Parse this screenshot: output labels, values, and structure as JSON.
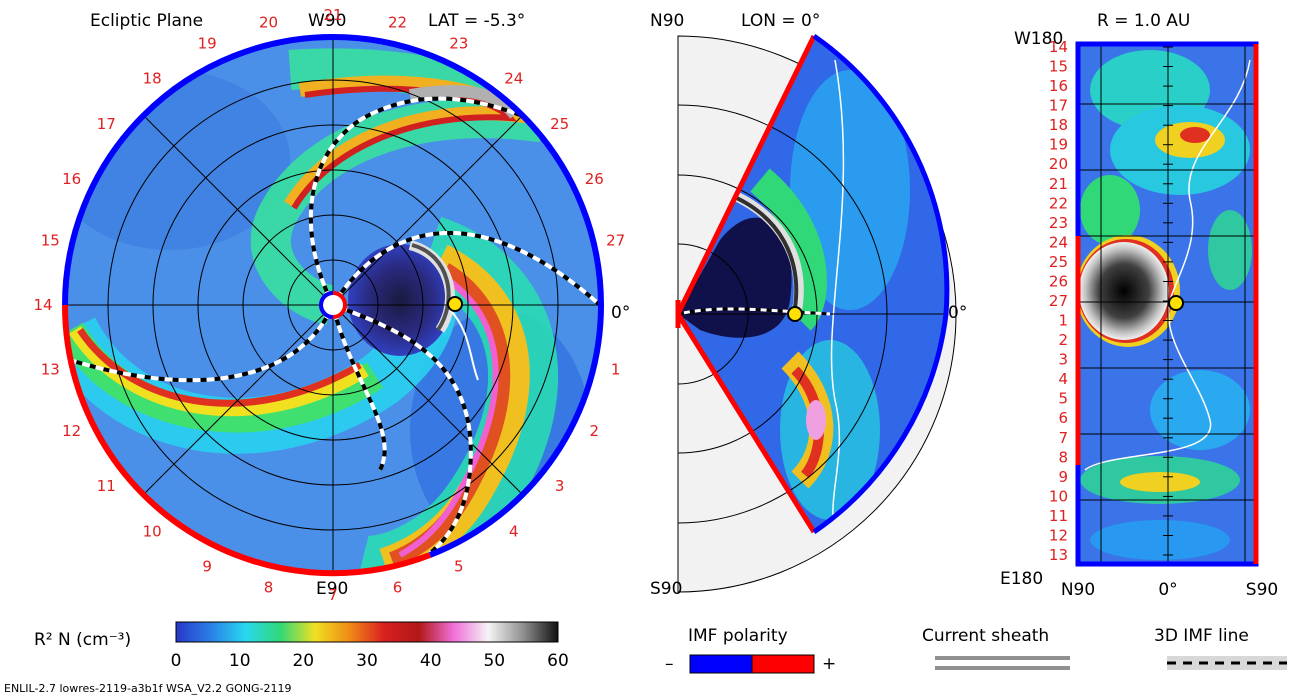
{
  "ecliptic": {
    "title": "Ecliptic Plane",
    "top_label": "W90",
    "bottom_label": "E90",
    "right_label": "0°",
    "lat_text": "LAT = -5.3°",
    "rim_labels": [
      "1",
      "2",
      "3",
      "4",
      "5",
      "6",
      "7",
      "8",
      "9",
      "10",
      "11",
      "12",
      "13",
      "14",
      "15",
      "16",
      "17",
      "18",
      "19",
      "20",
      "21",
      "22",
      "23",
      "24",
      "25",
      "26",
      "27"
    ]
  },
  "meridional": {
    "top_label": "N90",
    "bottom_label": "S90",
    "right_label": "0°",
    "lon_text": "LON = 0°"
  },
  "radial": {
    "title": "R = 1.0 AU",
    "top_label": "W180",
    "bottom_label": "E180",
    "left_numbers": [
      "14",
      "15",
      "16",
      "17",
      "18",
      "19",
      "20",
      "21",
      "22",
      "23",
      "24",
      "25",
      "26",
      "27",
      "1",
      "2",
      "3",
      "4",
      "5",
      "6",
      "7",
      "8",
      "9",
      "10",
      "11",
      "12",
      "13"
    ],
    "x_ticks": [
      "N90",
      "0°",
      "S90"
    ]
  },
  "colorbar": {
    "label_main": "R² N (cm⁻³)",
    "ticks": [
      "0",
      "10",
      "20",
      "30",
      "40",
      "50",
      "60"
    ],
    "stops": [
      "#2838c8",
      "#2a7fe8",
      "#28d8f0",
      "#30d878",
      "#f0e020",
      "#f08a18",
      "#d82020",
      "#b01818",
      "#f070d8",
      "#f4f4f4",
      "#909090",
      "#101010"
    ]
  },
  "legend": {
    "imf_label": "IMF polarity",
    "imf_minus": "–",
    "imf_plus": "+",
    "sheath_label": "Current sheath",
    "imf_line_label": "3D IMF line",
    "neg_color": "#0000ff",
    "pos_color": "#ff0000"
  },
  "footer": "ENLIL-2.7 lowres-2119-a3b1f WSA_V2.2 GONG-2119"
}
